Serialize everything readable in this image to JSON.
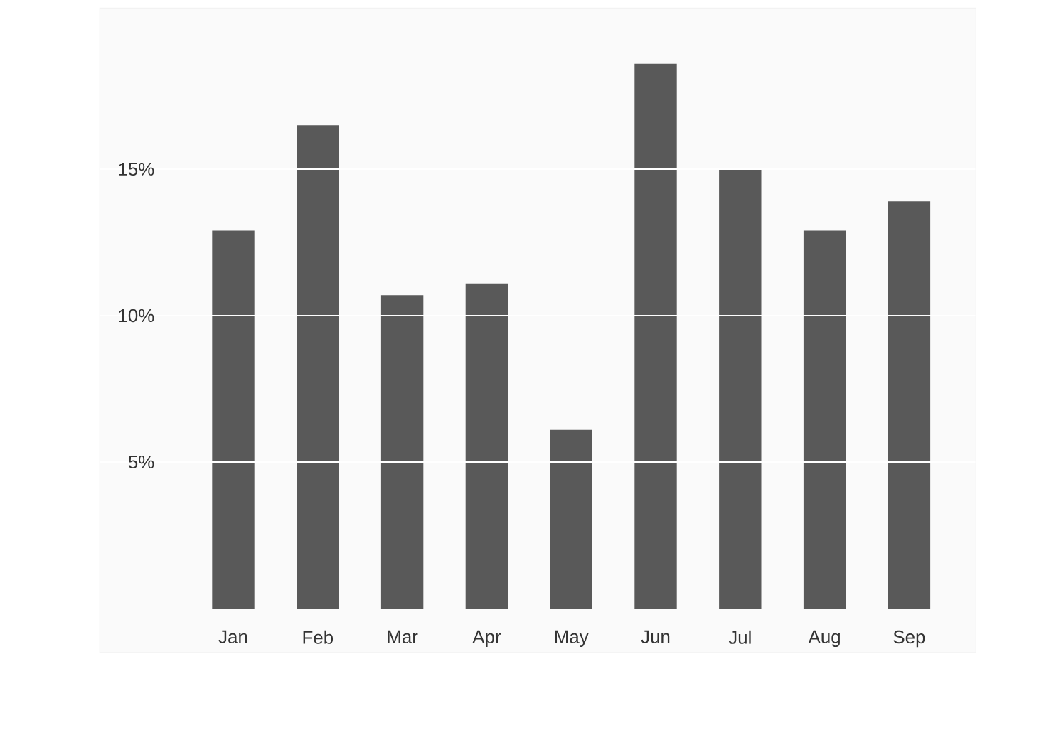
{
  "chart_data": {
    "type": "bar",
    "categories": [
      "Jan",
      "Feb",
      "Mar",
      "Apr",
      "May",
      "Jun",
      "Jul",
      "Aug",
      "Sep"
    ],
    "values": [
      12.9,
      16.5,
      10.7,
      11.1,
      6.1,
      18.6,
      15.0,
      12.9,
      13.9
    ],
    "color": "#595959",
    "ylim": [
      -1.5,
      20.5
    ],
    "yticks": [
      {
        "value": 5,
        "label": "5%"
      },
      {
        "value": 10,
        "label": "10%"
      },
      {
        "value": 15,
        "label": "15%"
      }
    ],
    "grid": "y"
  }
}
